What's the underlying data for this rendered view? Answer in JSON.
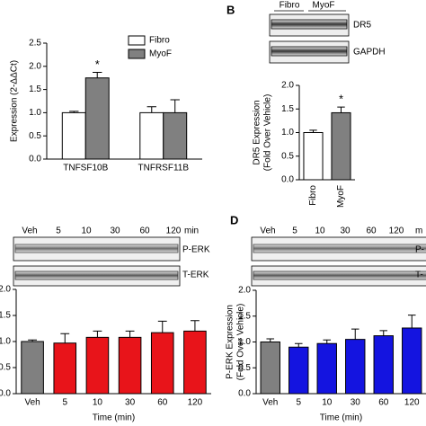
{
  "chart_data": [
    {
      "type": "grouped-bar",
      "ylabel": "Expression (2-ΔΔCt)",
      "categories": [
        "TNFSF10B",
        "TNFRSF11B"
      ],
      "series": [
        {
          "name": "Fibro",
          "color": "#ffffff",
          "values": [
            1.0,
            1.0
          ],
          "errors": [
            0.03,
            0.13
          ]
        },
        {
          "name": "MyoF",
          "color": "#808080",
          "values": [
            1.75,
            1.0
          ],
          "errors": [
            0.12,
            0.28
          ]
        }
      ],
      "annotation": "*",
      "ylim": [
        0,
        2.5
      ],
      "yticks": [
        {
          "value": 0,
          "label": "0.0"
        },
        0.5,
        {
          "value": 1,
          "label": "1.0"
        },
        1.5,
        {
          "value": 2,
          "label": "2.0"
        },
        2.5
      ]
    },
    {
      "type": "bar",
      "panel": "B",
      "ylabel": [
        "DR5 Expression",
        "(Fold Over Vehicle)"
      ],
      "categories": [
        "Fibro",
        "MyoF"
      ],
      "values": [
        1.0,
        1.42
      ],
      "errors": [
        0.05,
        0.12
      ],
      "colors": [
        "#ffffff",
        "#808080"
      ],
      "annotation": "*",
      "blot": {
        "lanes": [
          "Fibro",
          "MyoF"
        ],
        "rows": [
          "DR5",
          "GAPDH"
        ]
      },
      "ylim": [
        0,
        2.0
      ],
      "yticks": [
        {
          "value": 0,
          "label": "0.0"
        },
        0.5,
        {
          "value": 1,
          "label": "1.0"
        },
        1.5,
        {
          "value": 2,
          "label": "2.0"
        }
      ]
    },
    {
      "type": "bar",
      "xlabel": "Time (min)",
      "categories": [
        "Veh",
        "5",
        "10",
        "30",
        "60",
        "120"
      ],
      "values": [
        1.0,
        0.97,
        1.08,
        1.08,
        1.17,
        1.2
      ],
      "errors": [
        0.03,
        0.18,
        0.12,
        0.12,
        0.22,
        0.2
      ],
      "colors": [
        "#808080",
        "#e8141a",
        "#e8141a",
        "#e8141a",
        "#e8141a",
        "#e8141a"
      ],
      "blot": {
        "lanes": [
          "Veh",
          "5",
          "10",
          "30",
          "60",
          "120"
        ],
        "lane_unit": "min",
        "rows": [
          "P-ERK",
          "T-ERK"
        ]
      },
      "ylim": [
        0,
        2.0
      ],
      "yticks": [
        {
          "value": 0,
          "label": "0.0"
        },
        0.5,
        {
          "value": 1,
          "label": "1.0"
        },
        1.5,
        {
          "value": 2,
          "label": "2.0"
        }
      ]
    },
    {
      "type": "bar",
      "panel": "D",
      "xlabel": "Time (min)",
      "ylabel": [
        "P-ERK Expression",
        "(Fold Over Vehicle)"
      ],
      "categories": [
        "Veh",
        "5",
        "10",
        "30",
        "60",
        "120"
      ],
      "values": [
        1.0,
        0.9,
        0.97,
        1.05,
        1.12,
        1.27
      ],
      "errors": [
        0.06,
        0.07,
        0.07,
        0.2,
        0.1,
        0.25
      ],
      "colors": [
        "#808080",
        "#1414e0",
        "#1414e0",
        "#1414e0",
        "#1414e0",
        "#1414e0"
      ],
      "blot": {
        "lanes": [
          "Veh",
          "5",
          "10",
          "30",
          "60",
          "120"
        ],
        "lane_unit": "m",
        "rows": [
          "P-",
          "T-"
        ]
      },
      "ylim": [
        0,
        2.0
      ],
      "yticks": [
        {
          "value": 0,
          "label": "0.0"
        },
        0.5,
        {
          "value": 1,
          "label": "1.0"
        },
        1.5,
        {
          "value": 2,
          "label": "2.0"
        }
      ]
    }
  ]
}
